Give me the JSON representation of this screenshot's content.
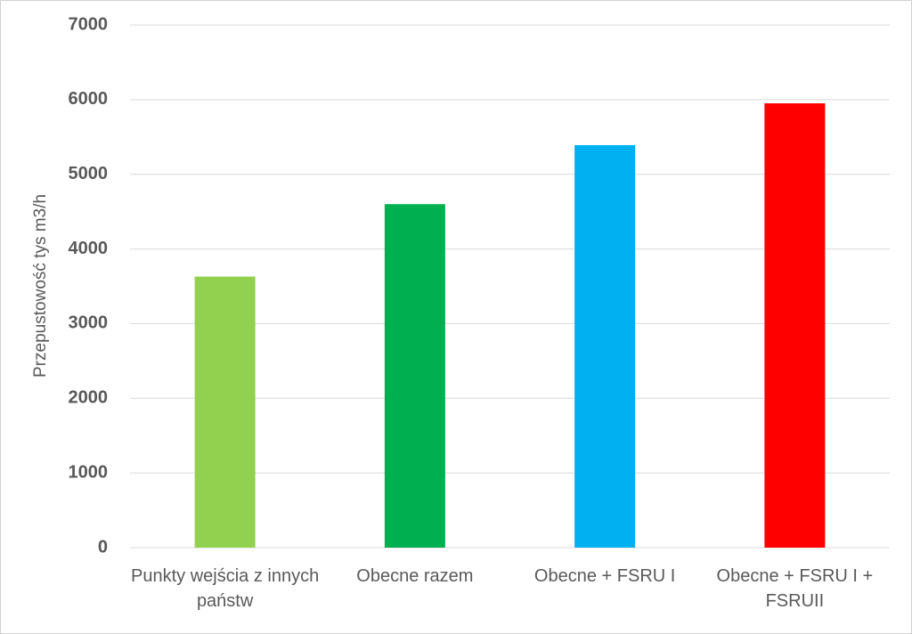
{
  "chart_data": {
    "type": "bar",
    "y_label": "Przepustowość tys m3/h",
    "categories": [
      "Punkty wejścia z innych państw",
      "Obecne razem",
      "Obecne + FSRU I",
      "Obecne + FSRU I + FSRUII"
    ],
    "values": [
      3630,
      4600,
      5390,
      5950
    ],
    "colors": [
      "#92d050",
      "#00b050",
      "#00b0f0",
      "#ff0000"
    ],
    "ylim": [
      0,
      7000
    ],
    "yticks": [
      0,
      1000,
      2000,
      3000,
      4000,
      5000,
      6000,
      7000
    ],
    "grid": true
  }
}
